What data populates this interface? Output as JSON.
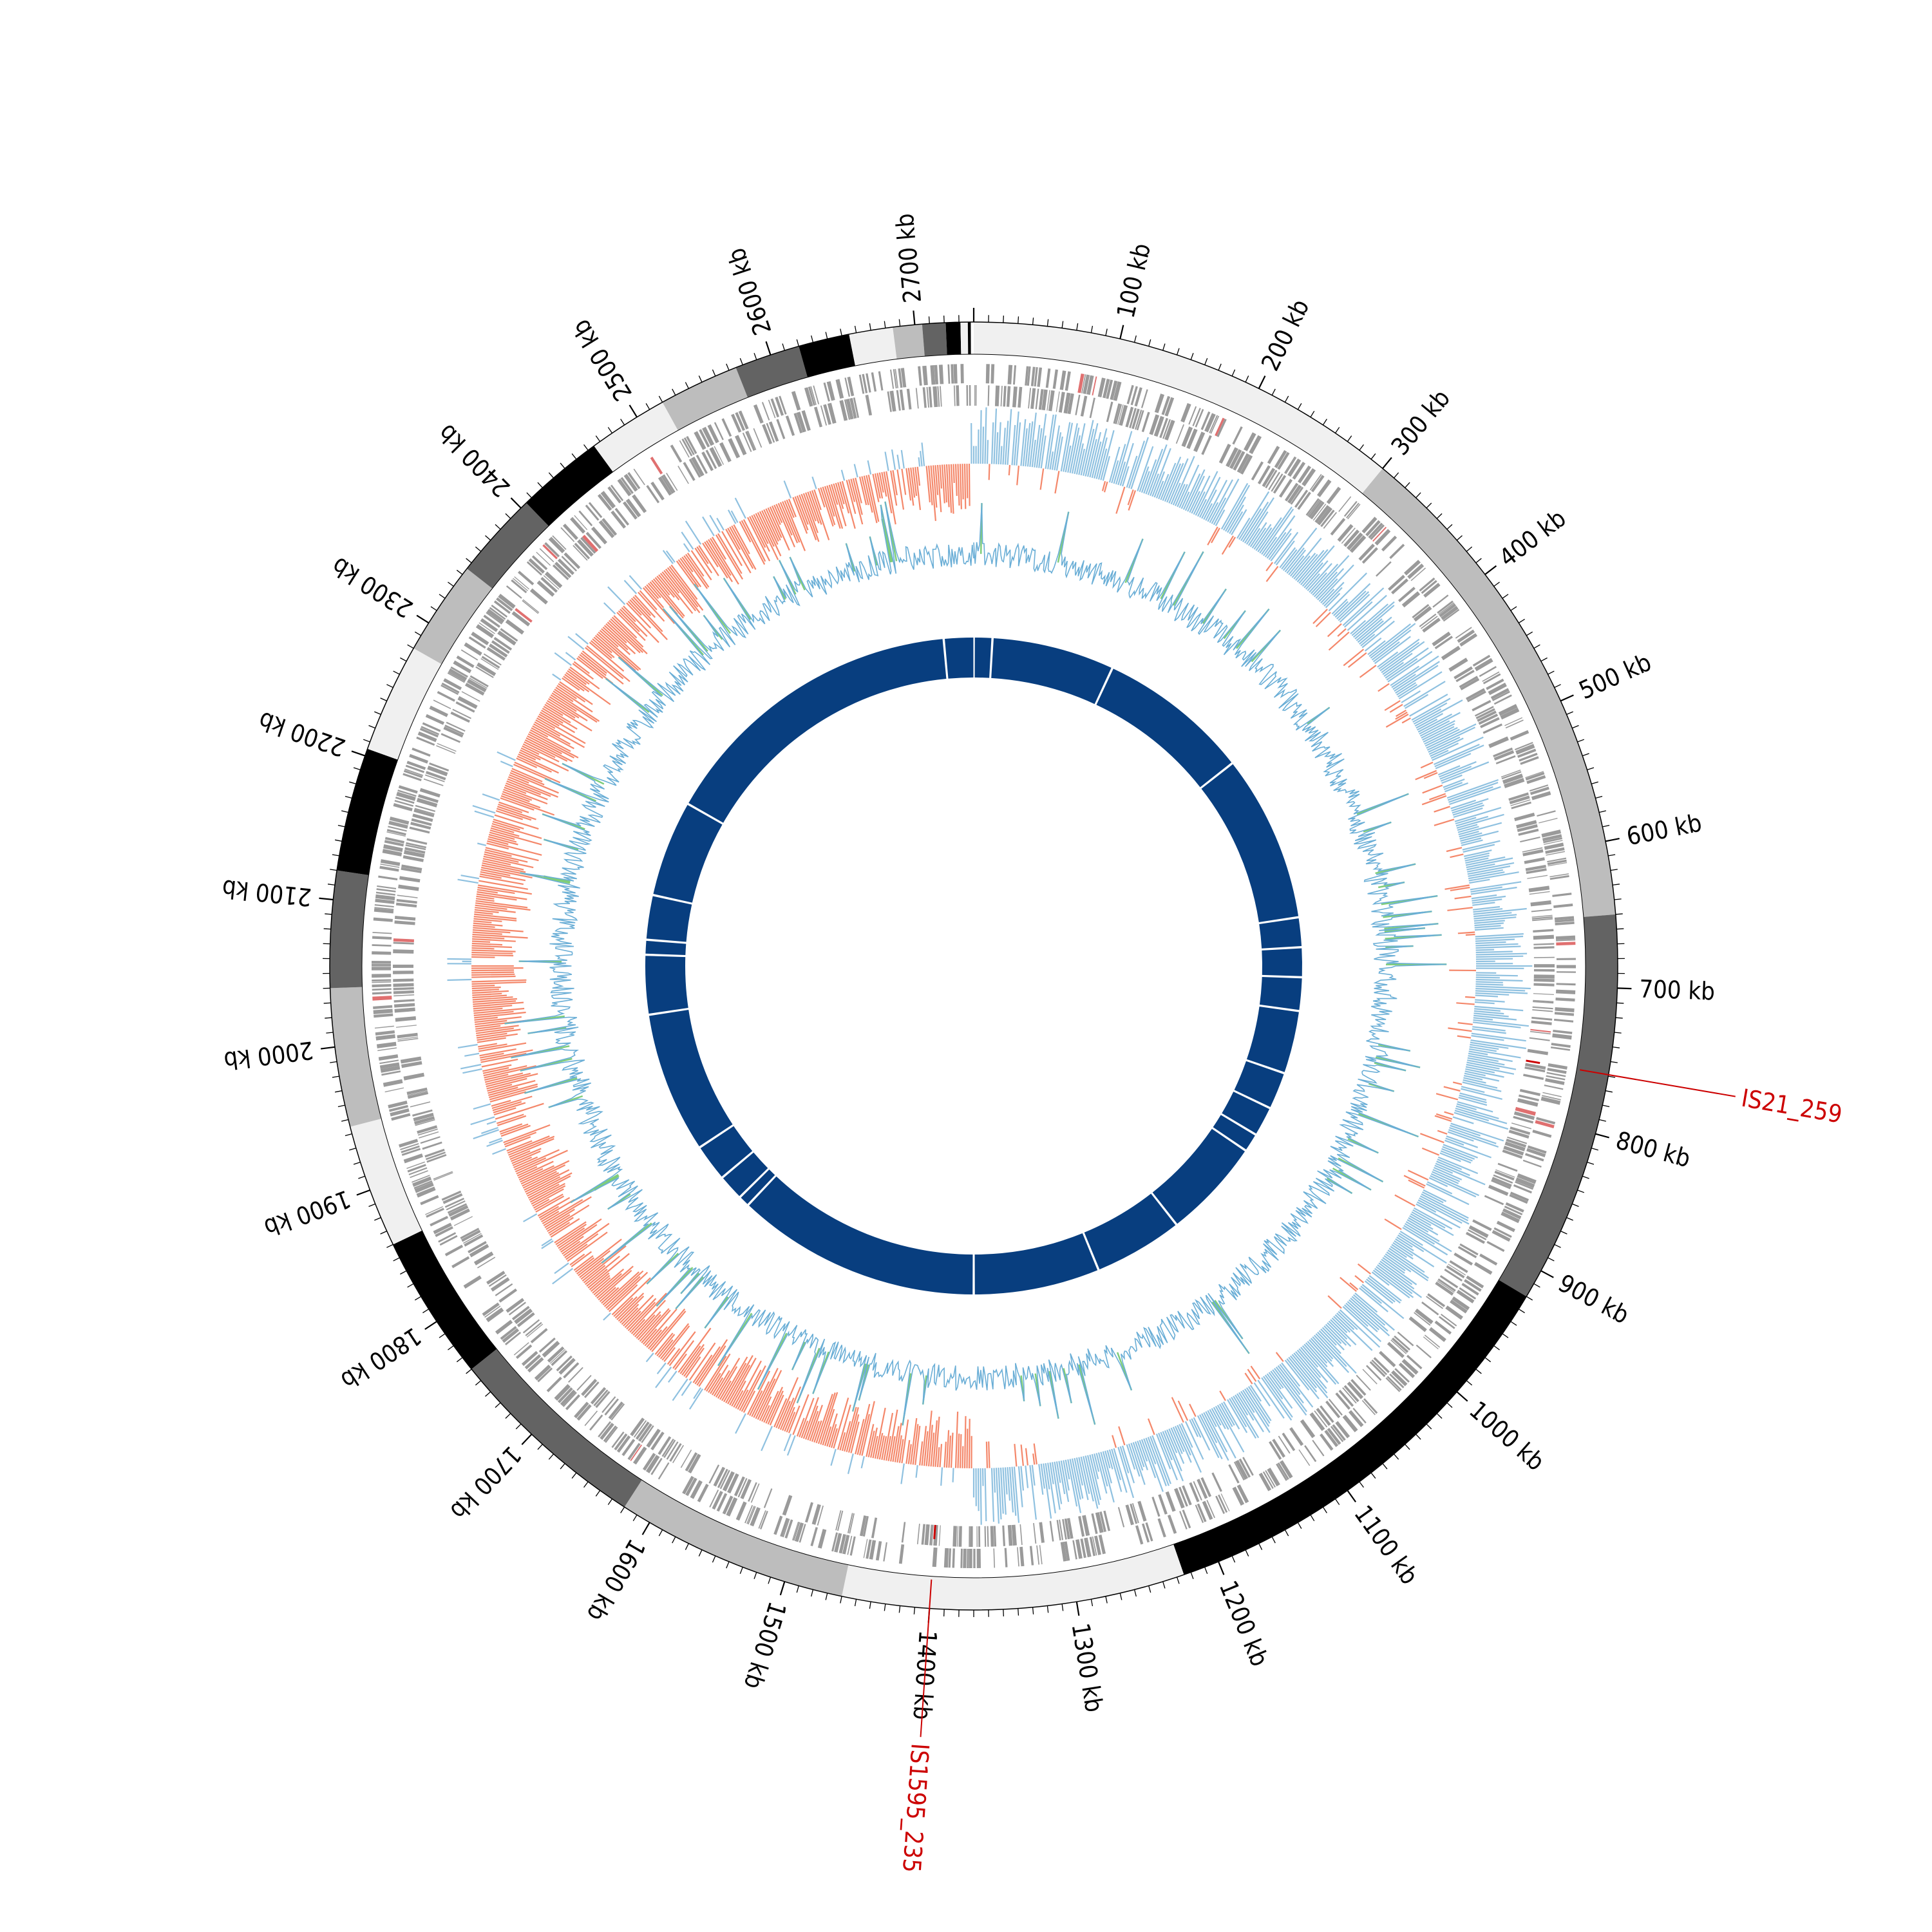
{
  "genome": {
    "total_kb": 2740,
    "scale_unit": "kb",
    "scale_labels": [
      "100 kb",
      "200 kb",
      "300 kb",
      "400 kb",
      "500 kb",
      "600 kb",
      "700 kb",
      "800 kb",
      "900 kb",
      "1000 kb",
      "1100 kb",
      "1200 kb",
      "1300 kb",
      "1400 kb",
      "1500 kb",
      "1600 kb",
      "1700 kb",
      "1800 kb",
      "1900 kb",
      "2000 kb",
      "2100 kb",
      "2200 kb",
      "2300 kb",
      "2400 kb",
      "2500 kb",
      "2600 kb",
      "2700 kb"
    ]
  },
  "ideogram": {
    "bands": [
      {
        "start": 0,
        "end": 300,
        "shade": "#f0f0f0"
      },
      {
        "start": 300,
        "end": 650,
        "shade": "#bdbdbd"
      },
      {
        "start": 650,
        "end": 920,
        "shade": "#636363"
      },
      {
        "start": 920,
        "end": 1225,
        "shade": "#000000"
      },
      {
        "start": 1225,
        "end": 1460,
        "shade": "#f0f0f0"
      },
      {
        "start": 1460,
        "end": 1620,
        "shade": "#bdbdbd"
      },
      {
        "start": 1620,
        "end": 1760,
        "shade": "#636363"
      },
      {
        "start": 1760,
        "end": 1860,
        "shade": "#000000"
      },
      {
        "start": 1860,
        "end": 1945,
        "shade": "#f0f0f0"
      },
      {
        "start": 1945,
        "end": 2040,
        "shade": "#bdbdbd"
      },
      {
        "start": 2040,
        "end": 2120,
        "shade": "#636363"
      },
      {
        "start": 2120,
        "end": 2205,
        "shade": "#000000"
      },
      {
        "start": 2205,
        "end": 2280,
        "shade": "#f0f0f0"
      },
      {
        "start": 2280,
        "end": 2345,
        "shade": "#bdbdbd"
      },
      {
        "start": 2345,
        "end": 2405,
        "shade": "#636363"
      },
      {
        "start": 2405,
        "end": 2465,
        "shade": "#000000"
      },
      {
        "start": 2465,
        "end": 2520,
        "shade": "#f0f0f0"
      },
      {
        "start": 2520,
        "end": 2575,
        "shade": "#bdbdbd"
      },
      {
        "start": 2575,
        "end": 2620,
        "shade": "#636363"
      },
      {
        "start": 2620,
        "end": 2655,
        "shade": "#000000"
      },
      {
        "start": 2655,
        "end": 2685,
        "shade": "#f0f0f0"
      },
      {
        "start": 2685,
        "end": 2705,
        "shade": "#bdbdbd"
      },
      {
        "start": 2705,
        "end": 2721,
        "shade": "#636363"
      },
      {
        "start": 2721,
        "end": 2731,
        "shade": "#000000"
      },
      {
        "start": 2731,
        "end": 2736,
        "shade": "#f0f0f0"
      },
      {
        "start": 2736,
        "end": 2738,
        "shade": "#000000"
      }
    ]
  },
  "annotations": [
    {
      "label": "IS21_259",
      "position_kb": 759,
      "color": "#cc0000"
    },
    {
      "label": "IS1595_235",
      "position_kb": 1400,
      "color": "#cc0000"
    }
  ],
  "tracks": {
    "gc_skew": {
      "positive_color": "#8fc1e0",
      "negative_color": "#f4876a"
    },
    "gc_content": {
      "line_color": "#6aaed6",
      "fill_color": "#7fcd7a"
    },
    "synteny": {
      "color": "#083e7f",
      "gaps_kb": [
        0,
        25,
        190,
        395,
        620,
        660,
        700,
        745,
        830,
        880,
        920,
        945,
        1080,
        1200,
        1370,
        1700,
        1715,
        1750,
        1800,
        1990,
        2070,
        2090,
        2150,
        2280,
        2700
      ]
    },
    "genes": {
      "color": "#9a9a9a",
      "rrna_color": "#e07070"
    }
  }
}
